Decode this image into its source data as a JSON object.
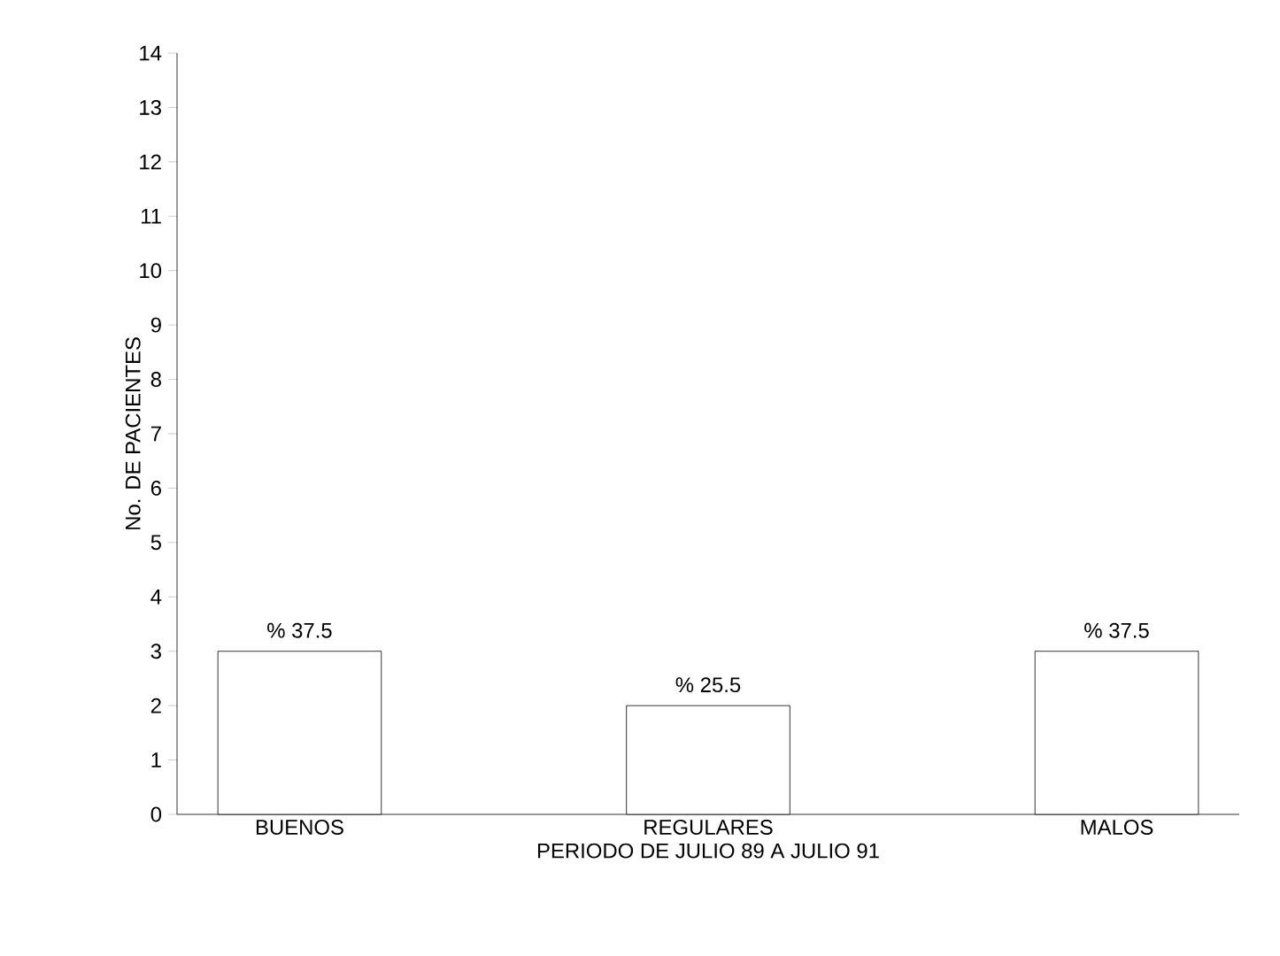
{
  "chart_data": {
    "type": "bar",
    "xlabel": "PERIODO DE JULIO 89 A JULIO 91",
    "ylabel": "No. DE PACIENTES",
    "categories": [
      "BUENOS",
      "REGULARES",
      "MALOS"
    ],
    "values": [
      3,
      2,
      3
    ],
    "annotations": [
      {
        "text": "% 37.5",
        "x": "BUENOS",
        "y": 3
      },
      {
        "text": "% 25.5",
        "x": "REGULARES",
        "y": 2
      },
      {
        "text": "% 37.5",
        "x": "MALOS",
        "y": 3
      }
    ],
    "color": "#ffffff",
    "ylim": [
      0,
      14
    ],
    "yticks": [
      0,
      1,
      2,
      3,
      4,
      5,
      6,
      7,
      8,
      9,
      10,
      11,
      12,
      13,
      14
    ],
    "grid": false
  }
}
